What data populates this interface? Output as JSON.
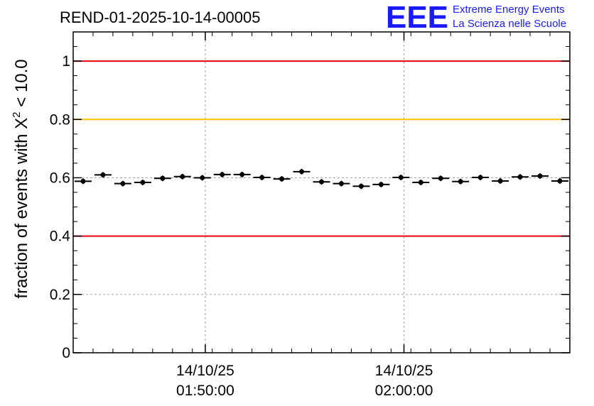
{
  "chart_data": {
    "type": "scatter",
    "title": "REND-01-2025-10-14-00005",
    "ylabel_main": "fraction of events with ",
    "ylabel_symbol": "X",
    "ylabel_sup": "2",
    "ylabel_tail": " < 10.0",
    "xlabel": "",
    "ylim": [
      0,
      1.1
    ],
    "yticks": [
      {
        "value": 0,
        "label": "0"
      },
      {
        "value": 0.2,
        "label": "0.2"
      },
      {
        "value": 0.4,
        "label": "0.4"
      },
      {
        "value": 0.6,
        "label": "0.6"
      },
      {
        "value": 0.8,
        "label": "0.8"
      },
      {
        "value": 1,
        "label": "1"
      }
    ],
    "xlim_minutes": [
      0,
      50
    ],
    "xticks": [
      {
        "minute": 13.3,
        "date": "14/10/25",
        "time": "01:50:00"
      },
      {
        "minute": 33.3,
        "date": "14/10/25",
        "time": "02:00:00"
      }
    ],
    "minor_tick_count": 25,
    "reference_lines": [
      {
        "value": 1.0,
        "color": "#e8000b"
      },
      {
        "value": 0.8,
        "color": "#ffc000"
      },
      {
        "value": 0.4,
        "color": "#e8000b"
      }
    ],
    "grid": true,
    "points": [
      0.588,
      0.61,
      0.58,
      0.584,
      0.598,
      0.604,
      0.6,
      0.611,
      0.611,
      0.601,
      0.596,
      0.621,
      0.586,
      0.58,
      0.571,
      0.577,
      0.601,
      0.584,
      0.598,
      0.587,
      0.601,
      0.589,
      0.603,
      0.606,
      0.589
    ],
    "point_color": "#000000"
  },
  "logo": {
    "mark": "EEE",
    "line1": "Extreme Energy Events",
    "line2": "La Scienza nelle Scuole"
  }
}
